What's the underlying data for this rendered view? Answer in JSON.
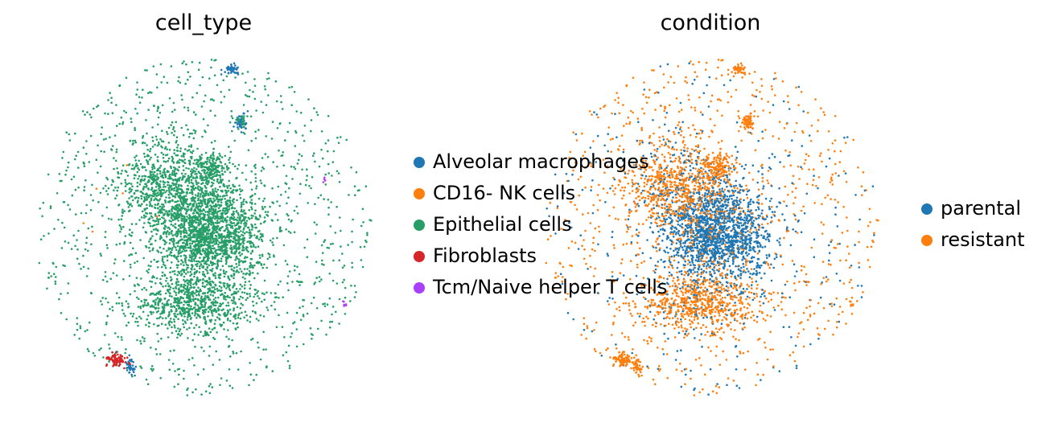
{
  "chart_data": [
    {
      "type": "scatter",
      "title": "cell_type",
      "xlabel": "",
      "ylabel": "",
      "grid": false,
      "axes_visible": false,
      "legend_position": "right",
      "series": [
        {
          "name": "Alveolar macrophages",
          "color": "#1f77b4"
        },
        {
          "name": "CD16- NK cells",
          "color": "#ff7f0e"
        },
        {
          "name": "Epithelial cells",
          "color": "#279e68"
        },
        {
          "name": "Fibroblasts",
          "color": "#d62728"
        },
        {
          "name": "Tcm/Naive helper T cells",
          "color": "#aa40fc"
        }
      ]
    },
    {
      "type": "scatter",
      "title": "condition",
      "xlabel": "",
      "ylabel": "",
      "grid": false,
      "axes_visible": false,
      "legend_position": "right",
      "series": [
        {
          "name": "parental",
          "color": "#1f77b4"
        },
        {
          "name": "resistant",
          "color": "#ff7f0e"
        }
      ]
    }
  ]
}
